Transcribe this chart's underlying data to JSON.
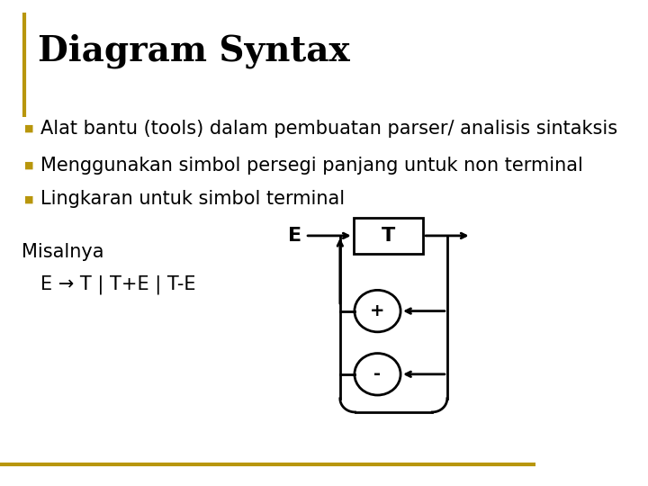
{
  "title": "Diagram Syntax",
  "title_color": "#000000",
  "title_fontsize": 28,
  "accent_line_color": "#B8960C",
  "bullet_color": "#B8960C",
  "bullet_items": [
    "Alat bantu (tools) dalam pembuatan parser/ analisis sintaksis",
    "Menggunakan simbol persegi panjang untuk non terminal",
    "Lingkaran untuk simbol terminal"
  ],
  "bullet_fontsize": 15,
  "misalnya_text": "Misalnya",
  "formula_text": "E → T | T+E | T-E",
  "diagram_E_label": "E",
  "diagram_T_label": "T",
  "diagram_plus_label": "+",
  "diagram_minus_label": "-",
  "background_color": "#ffffff",
  "text_color": "#000000",
  "bottom_line_color": "#B8960C"
}
